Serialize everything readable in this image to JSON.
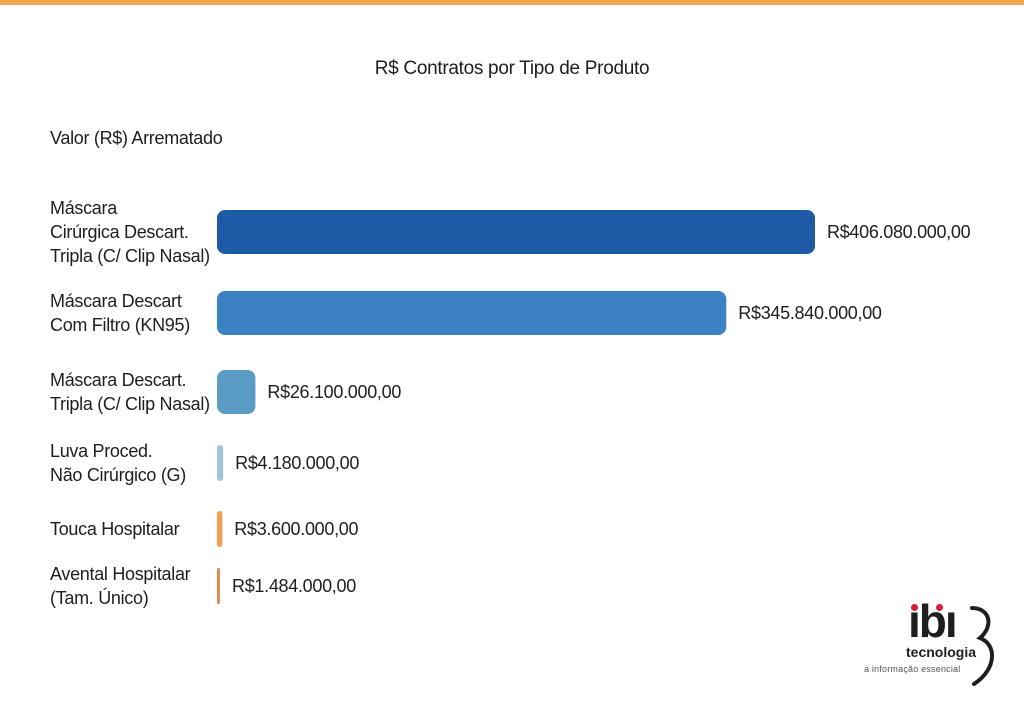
{
  "chart_data": {
    "type": "bar",
    "orientation": "horizontal",
    "title": "R$ Contratos por Tipo de Produto",
    "axis_label": "Valor (R$) Arrematado",
    "categories": [
      [
        "Máscara",
        "Cirúrgica Descart.",
        "Tripla (C/ Clip Nasal)"
      ],
      [
        "Máscara Descart",
        "Com Filtro (KN95)"
      ],
      [
        "Máscara Descart.",
        "Tripla (C/ Clip Nasal)"
      ],
      [
        "Luva Proced.",
        "Não Cirúrgico (G)"
      ],
      [
        "Touca Hospitalar"
      ],
      [
        "Avental Hospitalar",
        "(Tam. Único)"
      ]
    ],
    "values": [
      406080000,
      345840000,
      26100000,
      4180000,
      3600000,
      1484000
    ],
    "value_labels": [
      "R$406.080.000,00",
      "R$345.840.000,00",
      "R$26.100.000,00",
      "R$4.180.000,00",
      "R$3.600.000,00",
      "R$1.484.000,00"
    ],
    "colors": [
      "#1f5aa6",
      "#3a82c4",
      "#5b9cc6",
      "#9dc6dc",
      "#f0a04e",
      "#e08c5a"
    ],
    "xlim": [
      0,
      406080000
    ],
    "grid": false,
    "legend": "none"
  },
  "top_bar_color": "#f4a54c",
  "logo": {
    "name": "ibi",
    "subtitle": "tecnologia",
    "tagline": "a informação essencial"
  }
}
